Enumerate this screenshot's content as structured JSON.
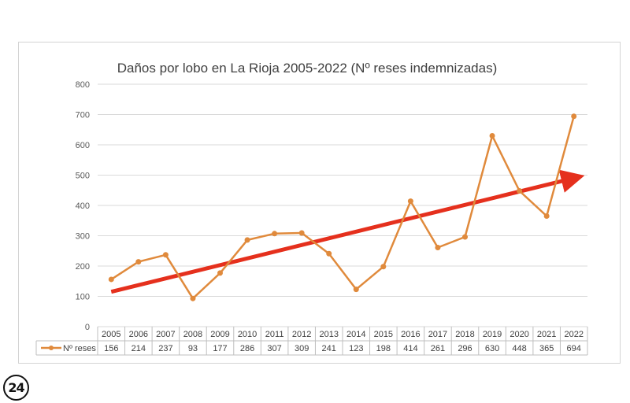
{
  "chart_data": {
    "type": "line",
    "title": "Daños por lobo en La Rioja 2005-2022 (Nº reses indemnizadas)",
    "categories": [
      "2005",
      "2006",
      "2007",
      "2008",
      "2009",
      "2010",
      "2011",
      "2012",
      "2013",
      "2014",
      "2015",
      "2016",
      "2017",
      "2018",
      "2019",
      "2020",
      "2021",
      "2022"
    ],
    "series": [
      {
        "name": "Nº reses",
        "values": [
          156,
          214,
          237,
          93,
          177,
          286,
          307,
          309,
          241,
          123,
          198,
          414,
          261,
          296,
          630,
          448,
          365,
          694
        ]
      }
    ],
    "ylim": [
      0,
      800
    ],
    "yticks": [
      0,
      100,
      200,
      300,
      400,
      500,
      600,
      700,
      800
    ],
    "grid": true,
    "data_table": true,
    "trend_arrow": {
      "from": [
        2005,
        115
      ],
      "to": [
        2022,
        490
      ]
    },
    "colors": {
      "line": "#e08a3c",
      "arrow": "#e5301d",
      "grid": "#d9d9d9"
    }
  },
  "logo": {
    "text": "24"
  }
}
